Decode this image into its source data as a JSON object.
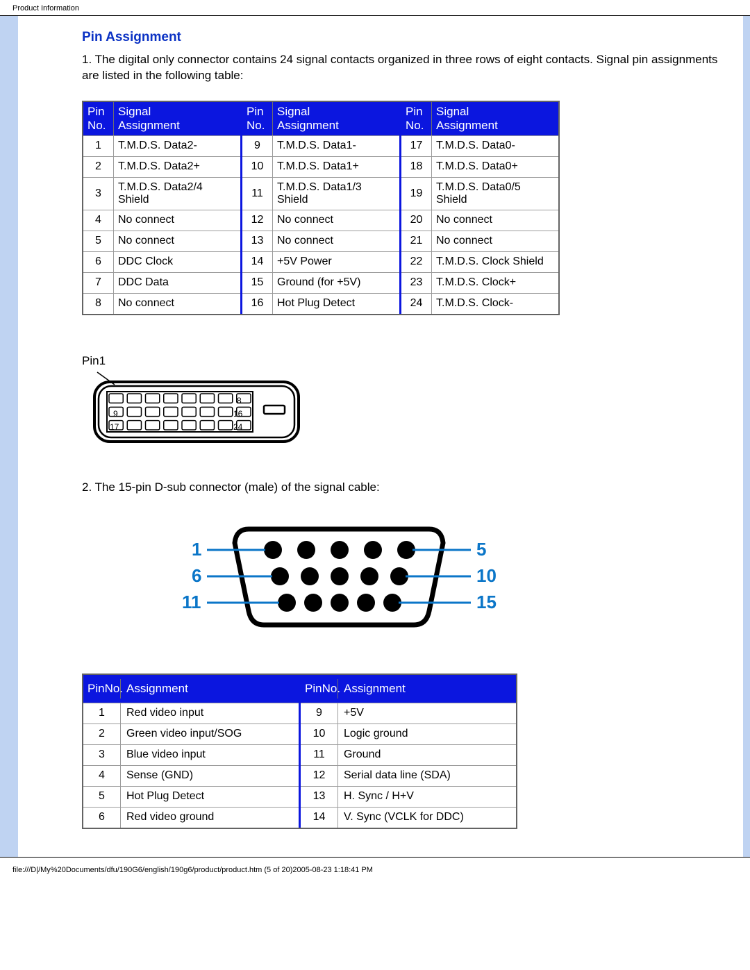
{
  "header": {
    "title": "Product Information"
  },
  "section": {
    "title": "Pin Assignment",
    "intro": "1. The digital only connector contains 24 signal contacts organized in three rows of eight contacts. Signal pin assignments are listed in the following table:"
  },
  "table24": {
    "head_pin": "Pin No.",
    "head_sig": "Signal Assignment",
    "cols": [
      [
        {
          "no": "1",
          "sig": "T.M.D.S. Data2-"
        },
        {
          "no": "2",
          "sig": "T.M.D.S. Data2+"
        },
        {
          "no": "3",
          "sig": "T.M.D.S. Data2/4 Shield"
        },
        {
          "no": "4",
          "sig": "No connect"
        },
        {
          "no": "5",
          "sig": "No connect"
        },
        {
          "no": "6",
          "sig": "DDC Clock"
        },
        {
          "no": "7",
          "sig": "DDC Data"
        },
        {
          "no": "8",
          "sig": "No connect"
        }
      ],
      [
        {
          "no": "9",
          "sig": "T.M.D.S. Data1-"
        },
        {
          "no": "10",
          "sig": "T.M.D.S. Data1+"
        },
        {
          "no": "11",
          "sig": "T.M.D.S. Data1/3 Shield"
        },
        {
          "no": "12",
          "sig": "No connect"
        },
        {
          "no": "13",
          "sig": "No connect"
        },
        {
          "no": "14",
          "sig": "+5V Power"
        },
        {
          "no": "15",
          "sig": "Ground (for +5V)"
        },
        {
          "no": "16",
          "sig": "Hot Plug Detect"
        }
      ],
      [
        {
          "no": "17",
          "sig": "T.M.D.S. Data0-"
        },
        {
          "no": "18",
          "sig": "T.M.D.S. Data0+"
        },
        {
          "no": "19",
          "sig": "T.M.D.S. Data0/5 Shield"
        },
        {
          "no": "20",
          "sig": "No connect"
        },
        {
          "no": "21",
          "sig": "No connect"
        },
        {
          "no": "22",
          "sig": "T.M.D.S. Clock Shield"
        },
        {
          "no": "23",
          "sig": "T.M.D.S. Clock+"
        },
        {
          "no": "24",
          "sig": "T.M.D.S. Clock-"
        }
      ]
    ]
  },
  "dvi_diagram": {
    "pin1_label": "Pin1",
    "row_end_labels": [
      "8",
      "16",
      "24"
    ],
    "row_start_labels": [
      "",
      "9",
      "17"
    ]
  },
  "second_intro": "2. The 15-pin D-sub connector (male) of the signal cable:",
  "vga_diagram": {
    "left_labels": [
      "1",
      "6",
      "11"
    ],
    "right_labels": [
      "5",
      "10",
      "15"
    ],
    "label_color": "#0b76c8",
    "pin_color": "#000000"
  },
  "table15": {
    "head_pin": "Pin No.",
    "head_sig": "Assignment",
    "cols": [
      [
        {
          "no": "1",
          "sig": "Red video input"
        },
        {
          "no": "2",
          "sig": "Green video input/SOG"
        },
        {
          "no": "3",
          "sig": "Blue video input"
        },
        {
          "no": "4",
          "sig": "Sense (GND)"
        },
        {
          "no": "5",
          "sig": "Hot Plug Detect"
        },
        {
          "no": "6",
          "sig": "Red video ground"
        }
      ],
      [
        {
          "no": "9",
          "sig": "+5V"
        },
        {
          "no": "10",
          "sig": "Logic ground"
        },
        {
          "no": "11",
          "sig": "Ground"
        },
        {
          "no": "12",
          "sig": "Serial data line (SDA)"
        },
        {
          "no": "13",
          "sig": "H. Sync / H+V"
        },
        {
          "no": "14",
          "sig": "V. Sync (VCLK for DDC)"
        }
      ]
    ]
  },
  "footer": "file:///D|/My%20Documents/dfu/190G6/english/190g6/product/product.htm (5 of 20)2005-08-23 1:18:41 PM",
  "colors": {
    "header_bg": "#0b16df",
    "header_fg": "#ffffff",
    "sidebar_bg": "#bfd3f2",
    "title_fg": "#0b32c4"
  }
}
